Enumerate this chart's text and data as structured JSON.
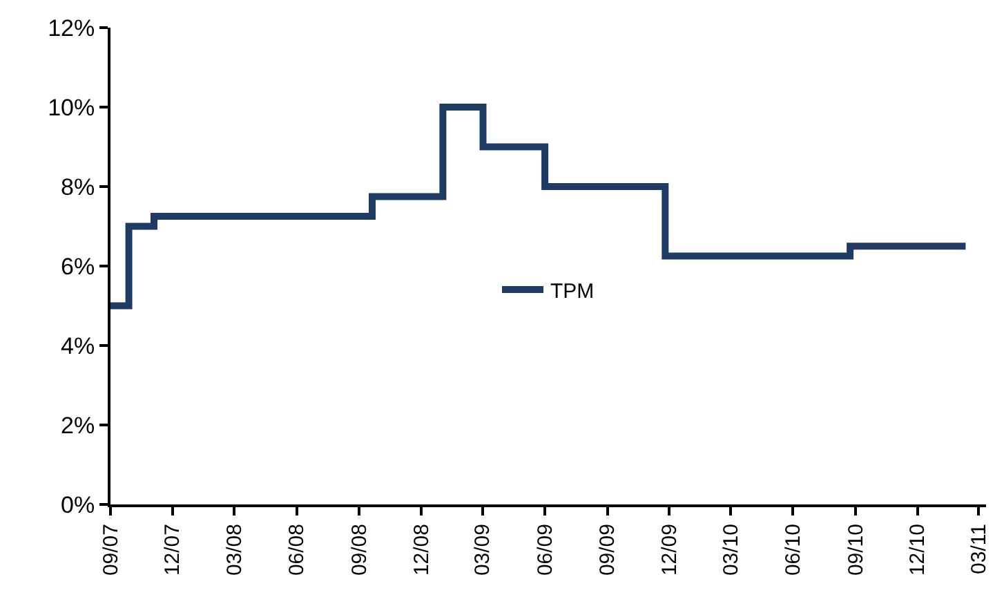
{
  "chart_data": {
    "type": "step",
    "x": [
      "2007-09-01",
      "2007-09-28",
      "2007-11-04",
      "2008-09-20",
      "2009-01-02",
      "2009-03-02",
      "2009-06-01",
      "2009-11-25",
      "2010-08-24",
      "2011-02-10"
    ],
    "series": [
      {
        "name": "TPM",
        "color": "#1f3b63",
        "values": [
          5.0,
          7.0,
          7.25,
          7.75,
          10.0,
          9.0,
          8.0,
          6.25,
          6.5,
          6.5
        ]
      }
    ],
    "ylim": [
      0,
      12
    ],
    "yticks": [
      {
        "value": 0,
        "label": "0%"
      },
      {
        "value": 2,
        "label": "2%"
      },
      {
        "value": 4,
        "label": "4%"
      },
      {
        "value": 6,
        "label": "6%"
      },
      {
        "value": 8,
        "label": "8%"
      },
      {
        "value": 10,
        "label": "10%"
      },
      {
        "value": 12,
        "label": "12%"
      }
    ],
    "xlim": [
      "2007-09-01",
      "2011-03-12"
    ],
    "xticks": [
      {
        "value": "2007-09-01",
        "label": "09/07"
      },
      {
        "value": "2007-12-01",
        "label": "12/07"
      },
      {
        "value": "2008-03-01",
        "label": "03/08"
      },
      {
        "value": "2008-06-01",
        "label": "06/08"
      },
      {
        "value": "2008-09-01",
        "label": "09/08"
      },
      {
        "value": "2008-12-01",
        "label": "12/08"
      },
      {
        "value": "2009-03-01",
        "label": "03/09"
      },
      {
        "value": "2009-06-01",
        "label": "06/09"
      },
      {
        "value": "2009-09-01",
        "label": "09/09"
      },
      {
        "value": "2009-12-01",
        "label": "12/09"
      },
      {
        "value": "2010-03-01",
        "label": "03/10"
      },
      {
        "value": "2010-06-01",
        "label": "06/10"
      },
      {
        "value": "2010-09-01",
        "label": "09/10"
      },
      {
        "value": "2010-12-01",
        "label": "12/10"
      },
      {
        "value": "2011-03-01",
        "label": "03/11"
      }
    ],
    "legend": "center"
  }
}
